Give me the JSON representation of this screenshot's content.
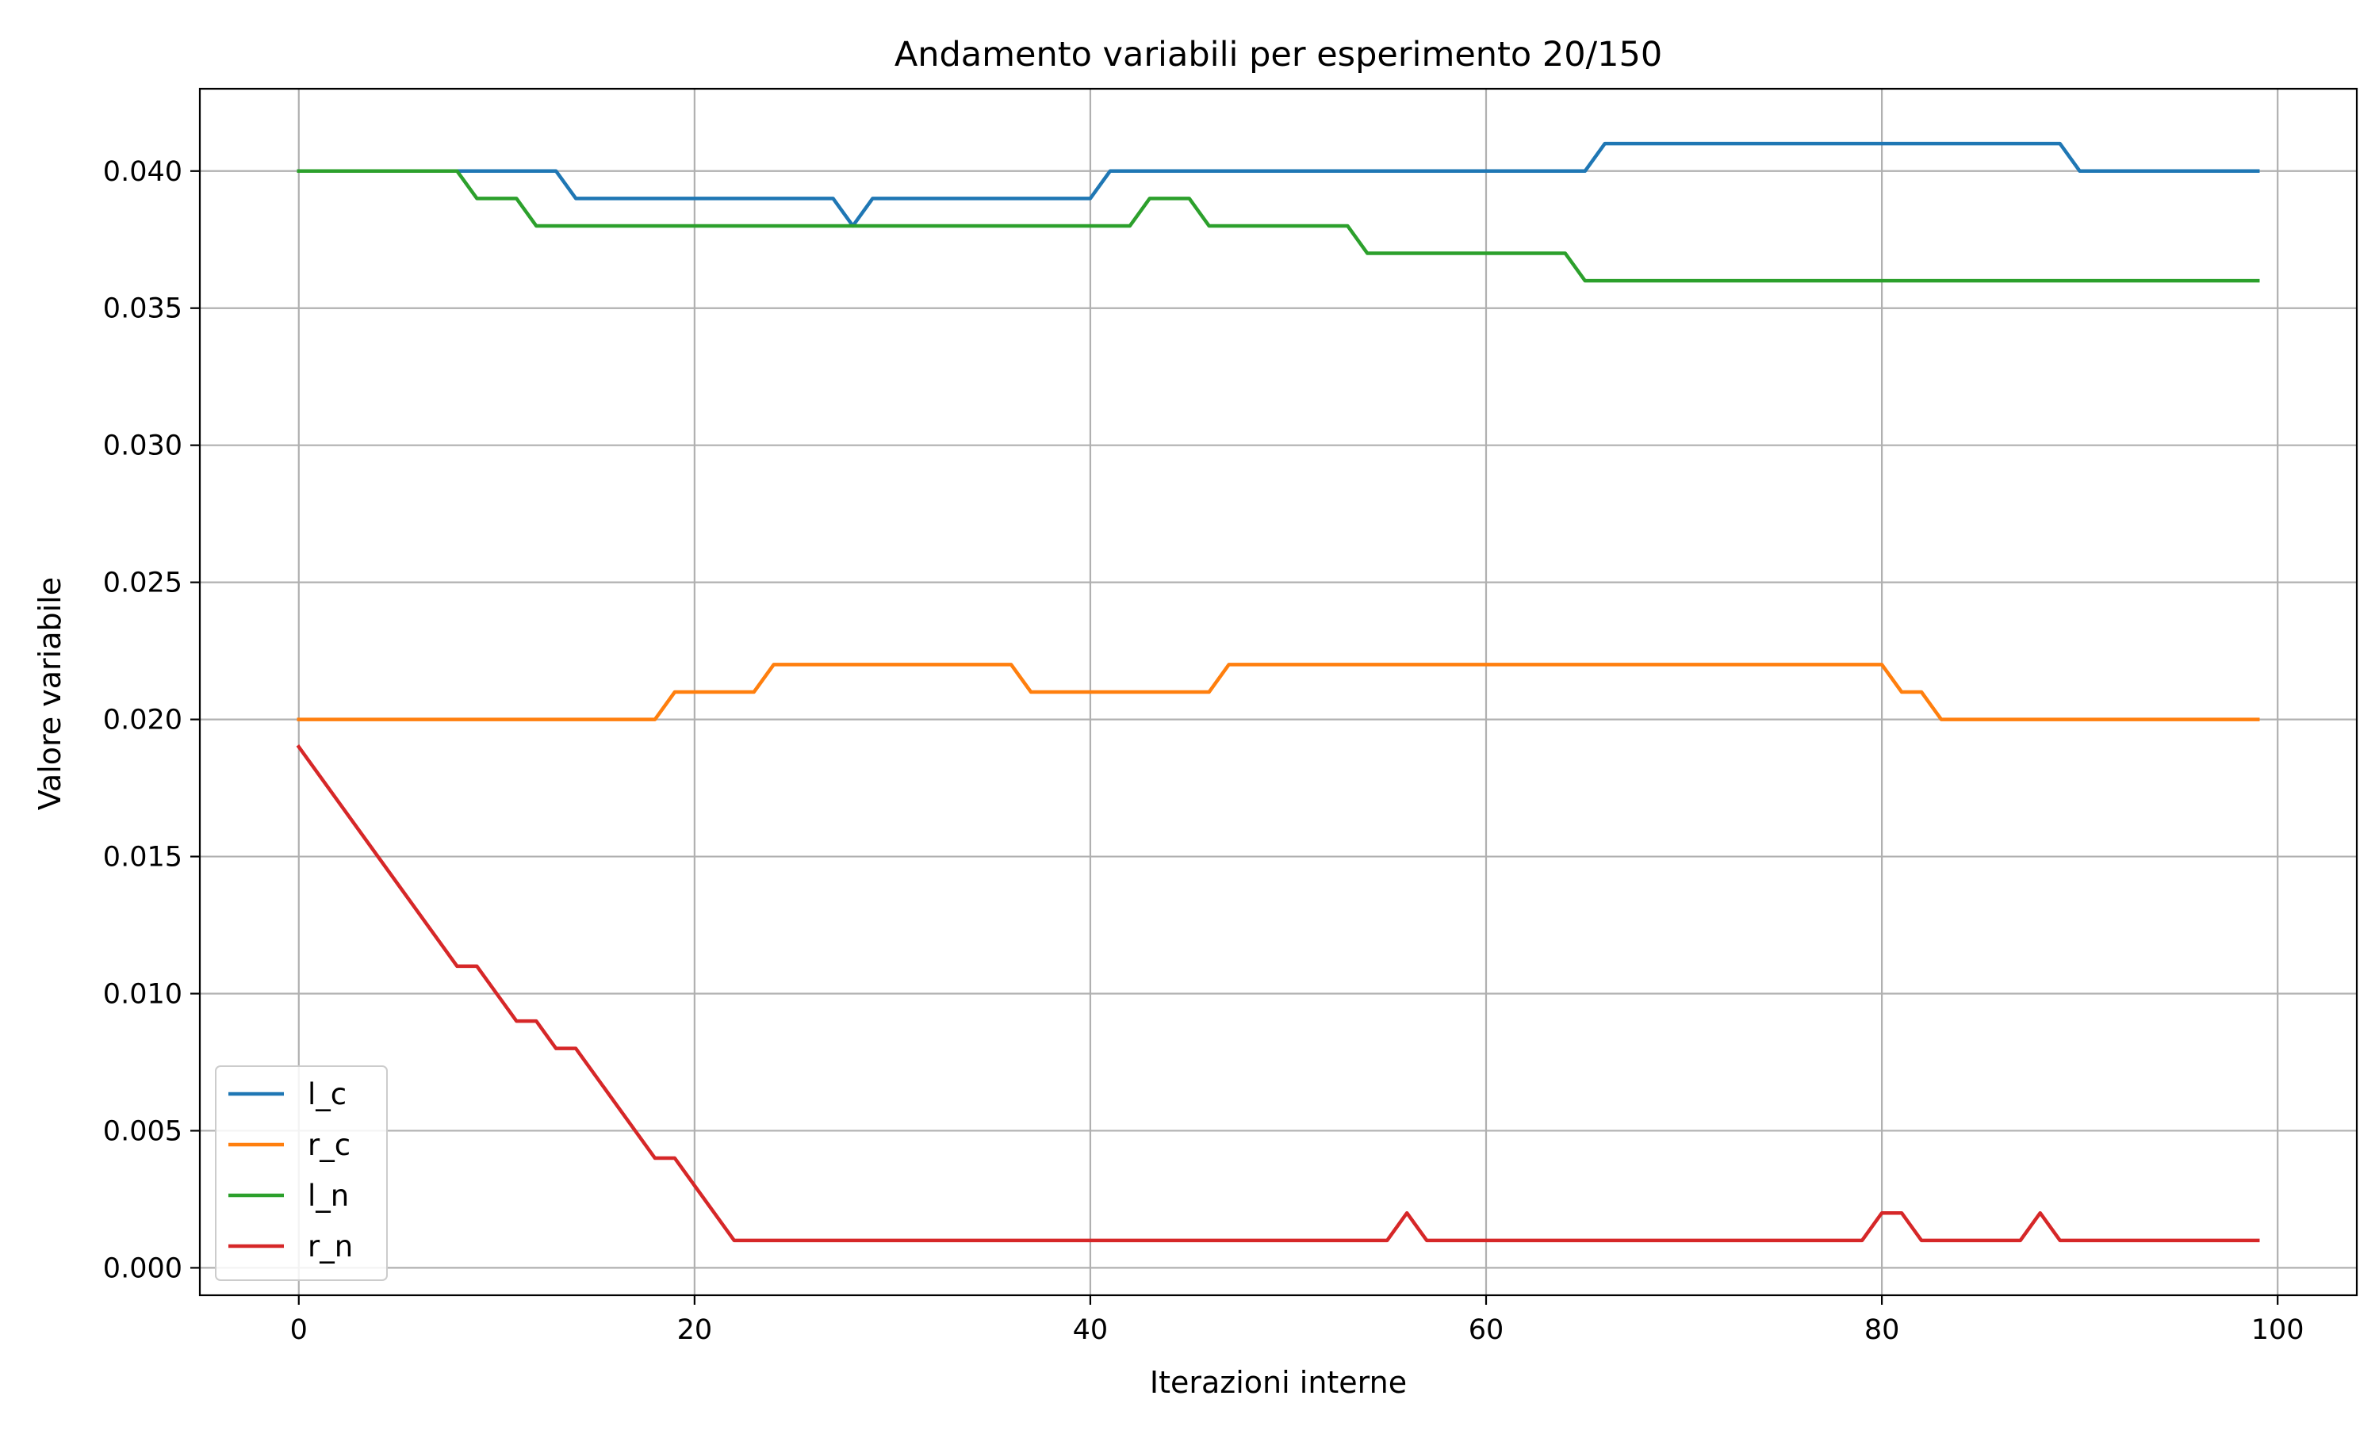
{
  "chart_data": {
    "type": "line",
    "title": "Andamento variabili per esperimento 20/150",
    "xlabel": "Iterazioni interne",
    "ylabel": "Valore variabile",
    "xlim": [
      -5,
      104
    ],
    "ylim": [
      -0.001,
      0.043
    ],
    "xticks": [
      0,
      20,
      40,
      60,
      80,
      100
    ],
    "xtick_labels": [
      "0",
      "20",
      "40",
      "60",
      "80",
      "100"
    ],
    "yticks": [
      0.0,
      0.005,
      0.01,
      0.015,
      0.02,
      0.025,
      0.03,
      0.035,
      0.04
    ],
    "ytick_labels": [
      "0.000",
      "0.005",
      "0.010",
      "0.015",
      "0.020",
      "0.025",
      "0.030",
      "0.035",
      "0.040"
    ],
    "grid": true,
    "legend_position": "lower-left",
    "series": [
      {
        "name": "l_c",
        "color": "#1f77b4",
        "x": [
          0,
          13,
          14,
          27,
          28,
          29,
          40,
          41,
          65,
          66,
          89,
          90,
          99
        ],
        "y": [
          0.04,
          0.04,
          0.039,
          0.039,
          0.038,
          0.039,
          0.039,
          0.04,
          0.04,
          0.041,
          0.041,
          0.04,
          0.04
        ]
      },
      {
        "name": "r_c",
        "color": "#ff7f0e",
        "x": [
          0,
          18,
          19,
          23,
          24,
          36,
          37,
          46,
          47,
          80,
          81,
          82,
          83,
          99
        ],
        "y": [
          0.02,
          0.02,
          0.021,
          0.021,
          0.022,
          0.022,
          0.021,
          0.021,
          0.022,
          0.022,
          0.021,
          0.021,
          0.02,
          0.02
        ]
      },
      {
        "name": "l_n",
        "color": "#2ca02c",
        "x": [
          0,
          8,
          9,
          11,
          12,
          42,
          43,
          45,
          46,
          53,
          54,
          64,
          65,
          99
        ],
        "y": [
          0.04,
          0.04,
          0.039,
          0.039,
          0.038,
          0.038,
          0.039,
          0.039,
          0.038,
          0.038,
          0.037,
          0.037,
          0.036,
          0.036
        ]
      },
      {
        "name": "r_n",
        "color": "#d62728",
        "x": [
          0,
          8,
          9,
          11,
          12,
          13,
          14,
          18,
          19,
          22,
          55,
          56,
          57,
          79,
          80,
          81,
          82,
          87,
          88,
          89,
          99
        ],
        "y": [
          0.019,
          0.011,
          0.011,
          0.009,
          0.009,
          0.008,
          0.008,
          0.004,
          0.004,
          0.001,
          0.001,
          0.002,
          0.001,
          0.001,
          0.002,
          0.002,
          0.001,
          0.001,
          0.002,
          0.001,
          0.001
        ]
      }
    ]
  }
}
